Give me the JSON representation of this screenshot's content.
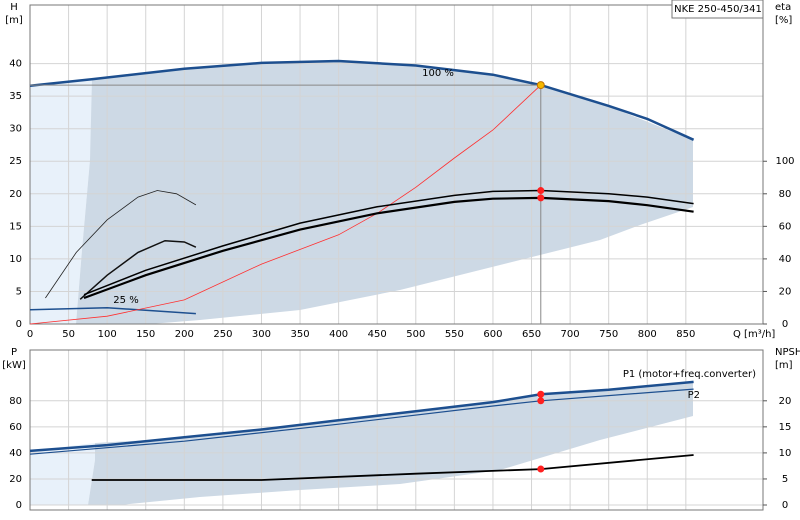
{
  "chart_data": [
    {
      "type": "line",
      "title": "NKE 250-450/341",
      "ylabel": "H",
      "yunit": "[m]",
      "y2label": "eta",
      "y2unit": "[%]",
      "xlabel": "Q [m³/h]",
      "xlim": [
        0,
        950
      ],
      "ylim": [
        0,
        49
      ],
      "y2lim": [
        0,
        196
      ],
      "xticks": [
        0,
        50,
        100,
        150,
        200,
        250,
        300,
        350,
        400,
        450,
        500,
        550,
        600,
        650,
        700,
        750,
        800,
        850
      ],
      "yticks": [
        0,
        5,
        10,
        15,
        20,
        25,
        30,
        35,
        40
      ],
      "y2ticks": [
        0,
        20,
        40,
        60,
        80,
        100
      ],
      "xtick_labels": true,
      "grid": true,
      "annotations": [
        "100 %",
        "25 %"
      ],
      "series": [
        {
          "color": "#1d4f8f",
          "width": 2.5,
          "x": [
            0,
            80,
            200,
            300,
            400,
            500,
            600,
            662,
            750,
            800,
            860
          ],
          "values": [
            36.6,
            37.6,
            39.2,
            40.1,
            40.4,
            39.7,
            38.3,
            36.7,
            33.5,
            31.5,
            28.3
          ]
        },
        {
          "color": "#222222",
          "width": 0.8,
          "x": [
            20,
            60,
            100,
            140,
            165,
            190,
            215
          ],
          "values": [
            4,
            11,
            16,
            19.5,
            20.5,
            20,
            18.3
          ]
        },
        {
          "color": "#111111",
          "width": 1.5,
          "x": [
            65,
            100,
            140,
            175,
            200,
            215
          ],
          "values": [
            3.8,
            7.5,
            11,
            12.8,
            12.6,
            11.8
          ]
        },
        {
          "color": "#1d4f8f",
          "width": 1.5,
          "x": [
            0,
            100,
            215
          ],
          "values": [
            2.2,
            2.5,
            1.6
          ]
        },
        {
          "color": "#ff3030",
          "width": 0.8,
          "x": [
            0,
            100,
            200,
            300,
            400,
            450,
            500,
            550,
            600,
            662
          ],
          "values": [
            0,
            1.2,
            3.7,
            9.2,
            13.7,
            17,
            21,
            25.5,
            29.8,
            36.7
          ]
        },
        {
          "color": "#000000",
          "width": 1.5,
          "axis": "y2",
          "x": [
            70,
            150,
            250,
            350,
            450,
            550,
            600,
            662,
            750,
            800,
            860
          ],
          "values": [
            18,
            33,
            48,
            62,
            72,
            79,
            81.5,
            82,
            80,
            78,
            74
          ]
        },
        {
          "color": "#000000",
          "width": 2.2,
          "axis": "y2",
          "x": [
            70,
            150,
            250,
            350,
            450,
            550,
            600,
            662,
            750,
            800,
            860
          ],
          "values": [
            16,
            30,
            45,
            58,
            68,
            75,
            77,
            77.5,
            75.5,
            73,
            69
          ]
        },
        {
          "color": "#f5b800",
          "marker": true,
          "operating": true,
          "x": [
            662
          ],
          "values": [
            36.7
          ]
        },
        {
          "color": "#ff2020",
          "marker": true,
          "axis": "y2",
          "x": [
            662,
            662
          ],
          "values": [
            82,
            77.5
          ]
        }
      ]
    },
    {
      "type": "line",
      "ylabel": "P",
      "yunit": "[kW]",
      "y2label": "NPSH",
      "y2unit": "[m]",
      "xlim": [
        0,
        950
      ],
      "ylim": [
        0,
        119
      ],
      "y2lim": [
        0,
        29.75
      ],
      "xticks": [
        0,
        50,
        100,
        150,
        200,
        250,
        300,
        350,
        400,
        450,
        500,
        550,
        600,
        650,
        700,
        750,
        800,
        850
      ],
      "yticks": [
        0,
        20,
        40,
        60,
        80
      ],
      "y2ticks": [
        0,
        5,
        10,
        15,
        20
      ],
      "xtick_labels": false,
      "grid": true,
      "series": [
        {
          "name": "P1 (motor+freq.converter)",
          "color": "#1d4f8f",
          "width": 2.5,
          "x": [
            0,
            100,
            200,
            300,
            400,
            500,
            600,
            662,
            750,
            860
          ],
          "values": [
            41.5,
            46,
            52,
            58,
            65,
            72,
            79,
            85,
            88.5,
            94.5
          ]
        },
        {
          "name": "P2",
          "color": "#1d4f8f",
          "width": 1.2,
          "x": [
            0,
            200,
            400,
            600,
            662,
            860
          ],
          "values": [
            39,
            49,
            62,
            76,
            80,
            89
          ]
        },
        {
          "color": "#000000",
          "width": 1.8,
          "axis": "y2",
          "x": [
            80,
            300,
            500,
            662,
            860
          ],
          "values": [
            4.8,
            4.8,
            6,
            6.9,
            9.6
          ]
        },
        {
          "color": "#ff2020",
          "marker": true,
          "x": [
            662,
            662
          ],
          "values": [
            85,
            80
          ]
        },
        {
          "color": "#ff2020",
          "marker": true,
          "axis": "y2",
          "x": [
            662
          ],
          "values": [
            6.9
          ]
        }
      ]
    }
  ]
}
